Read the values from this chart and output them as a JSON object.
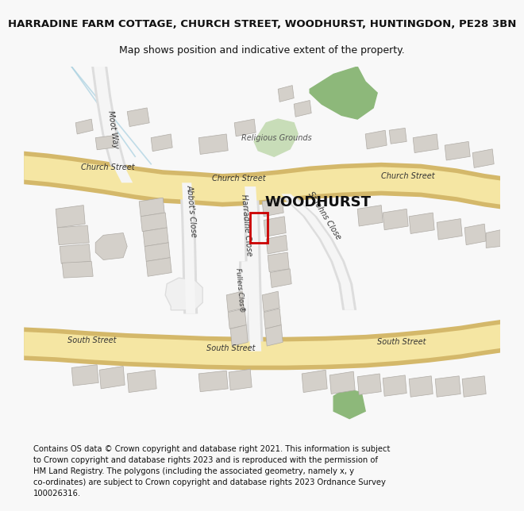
{
  "title_line1": "HARRADINE FARM COTTAGE, CHURCH STREET, WOODHURST, HUNTINGDON, PE28 3BN",
  "title_line2": "Map shows position and indicative extent of the property.",
  "footer": "Contains OS data © Crown copyright and database right 2021. This information is subject\nto Crown copyright and database rights 2023 and is reproduced with the permission of\nHM Land Registry. The polygons (including the associated geometry, namely x, y\nco-ordinates) are subject to Crown copyright and database rights 2023 Ordnance Survey\n100026316.",
  "background_color": "#f8f8f8",
  "map_background": "#ffffff",
  "road_color_major": "#f5e6a3",
  "road_outline": "#d4b86a",
  "building_color": "#d4d0ca",
  "building_outline": "#b0aca6",
  "green_area_color": "#8db87a",
  "green_area_light": "#c8ddb8",
  "highlight_color": "#cc0000",
  "label_color": "#333333",
  "water_line_color": "#a8d0e0"
}
